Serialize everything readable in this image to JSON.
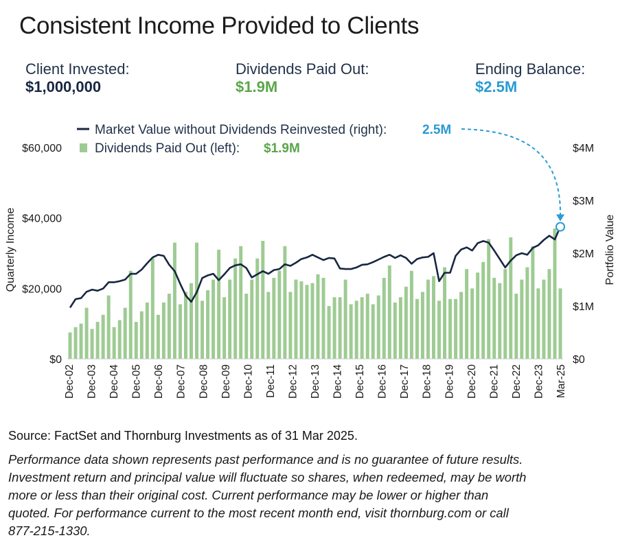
{
  "page": {
    "title": "Consistent Income Provided to Clients"
  },
  "stats": [
    {
      "label": "Client Invested:",
      "value": "$1,000,000",
      "color": "#172741"
    },
    {
      "label": "Dividends Paid Out:",
      "value": "$1.9M",
      "color": "#5aa64a"
    },
    {
      "label": "Ending Balance:",
      "value": "$2.5M",
      "color": "#2a9bd3"
    }
  ],
  "colors": {
    "bars": "#9ecb93",
    "line": "#172741",
    "annotation": "#2a9bd3",
    "dividends_text": "#5aa64a"
  },
  "chart_data": {
    "type": "bar+line",
    "ylabel_left": "Quarterly Income",
    "ylabel_right": "Portfolio Value",
    "ylim_left": [
      0,
      60000
    ],
    "ylim_right": [
      0,
      4000000
    ],
    "yticks_left": [
      "$0",
      "$20,000",
      "$40,000",
      "$60,000"
    ],
    "yticks_right": [
      "$0",
      "$1M",
      "$2M",
      "$3M",
      "$4M"
    ],
    "xticks": [
      "Dec-02",
      "Dec-03",
      "Dec-04",
      "Dec-05",
      "Dec-06",
      "Dec-07",
      "Dec-08",
      "Dec-09",
      "Dec-10",
      "Dec-11",
      "Dec-12",
      "Dec-13",
      "Dec-14",
      "Dec-15",
      "Dec-16",
      "Dec-17",
      "Dec-18",
      "Dec-19",
      "Dec-20",
      "Dec-21",
      "Dec-22",
      "Dec-23",
      "Mar-25"
    ],
    "legend": [
      {
        "text": "Market Value without Dividends Reinvested (right):",
        "value": "2.5M",
        "kind": "line"
      },
      {
        "text": "Dividends Paid Out (left):",
        "value": "$1.9M",
        "kind": "bar"
      }
    ],
    "annotation": {
      "text": "2.5M",
      "target_value": 2500000
    },
    "series": [
      {
        "name": "Dividends Paid Out (left):",
        "axis": "left",
        "kind": "bar",
        "values": [
          7500,
          9000,
          10000,
          14500,
          8500,
          10500,
          12500,
          18000,
          9000,
          11000,
          14500,
          25000,
          10500,
          13500,
          16000,
          28500,
          12500,
          16000,
          18500,
          33000,
          15500,
          19000,
          21500,
          33000,
          16500,
          19500,
          22500,
          31000,
          17500,
          22500,
          28500,
          32000,
          18500,
          22500,
          28500,
          33500,
          19000,
          23000,
          25000,
          32000,
          19000,
          22500,
          22000,
          21000,
          21500,
          24000,
          23000,
          15000,
          17500,
          17500,
          22500,
          15500,
          16500,
          17500,
          18500,
          15500,
          18000,
          23000,
          26500,
          16000,
          17500,
          20500,
          25000,
          17000,
          19000,
          22500,
          23500,
          16500,
          26000,
          17000,
          17000,
          19000,
          25500,
          20000,
          24500,
          27500,
          34000,
          23000,
          21500,
          25500,
          34500,
          18500,
          22500,
          26000,
          32000,
          20000,
          22500,
          25500,
          37000,
          20000
        ]
      },
      {
        "name": "Market Value without Dividends Reinvested (right):",
        "axis": "right",
        "kind": "line",
        "values": [
          970000,
          1130000,
          1150000,
          1270000,
          1310000,
          1290000,
          1330000,
          1450000,
          1450000,
          1470000,
          1500000,
          1610000,
          1610000,
          1690000,
          1810000,
          1920000,
          1970000,
          1950000,
          1780000,
          1660000,
          1420000,
          1200000,
          1080000,
          1260000,
          1530000,
          1580000,
          1610000,
          1490000,
          1600000,
          1720000,
          1770000,
          1790000,
          1720000,
          1540000,
          1600000,
          1660000,
          1610000,
          1680000,
          1700000,
          1790000,
          1760000,
          1820000,
          1890000,
          1920000,
          1970000,
          1920000,
          1870000,
          1910000,
          1900000,
          1710000,
          1700000,
          1700000,
          1730000,
          1780000,
          1790000,
          1830000,
          1880000,
          1930000,
          1970000,
          1910000,
          1960000,
          1910000,
          1800000,
          1890000,
          1920000,
          1930000,
          2000000,
          1470000,
          1630000,
          1630000,
          1950000,
          2070000,
          2110000,
          2050000,
          2190000,
          2230000,
          2200000,
          2050000,
          1890000,
          1730000,
          1860000,
          1960000,
          2000000,
          1970000,
          2100000,
          2150000,
          2250000,
          2330000,
          2260000,
          2500000
        ]
      }
    ]
  },
  "footer": {
    "source": "Source: FactSet and Thornburg Investments as of 31 Mar 2025.",
    "disclaimer": [
      "Performance data shown represents past performance and is no guarantee of future results.",
      "Investment return and principal value will fluctuate so shares, when redeemed, may be worth",
      "more or less than their original cost. Current performance may be lower or higher than",
      "quoted. For performance current to the most recent month end, visit thornburg.com or call",
      "877-215-1330."
    ]
  }
}
